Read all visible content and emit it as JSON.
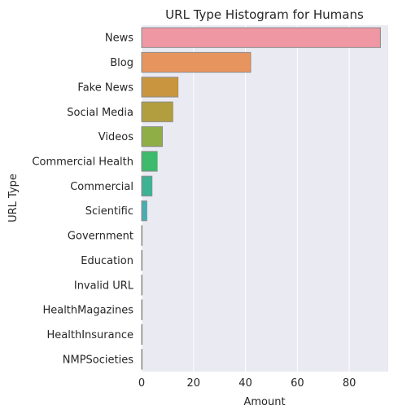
{
  "chart_data": {
    "type": "bar",
    "orientation": "horizontal",
    "title": "URL Type Histogram for Humans",
    "xlabel": "Amount",
    "ylabel": "URL Type",
    "xlim": [
      0,
      95
    ],
    "xticks": [
      0,
      20,
      40,
      60,
      80
    ],
    "grid": true,
    "categories": [
      "News",
      "Blog",
      "Fake News",
      "Social Media",
      "Videos",
      "Commercial Health",
      "Commercial",
      "Scientific",
      "Government",
      "Education",
      "Invalid URL",
      "HealthMagazines",
      "HealthInsurance",
      "NMPSocieties"
    ],
    "values": [
      92,
      42,
      14,
      12,
      8,
      6,
      4,
      2,
      0,
      0,
      0,
      0,
      0,
      0
    ],
    "colors": [
      "#ef97a3",
      "#e8945f",
      "#c9963f",
      "#b29e3f",
      "#8fae45",
      "#3dba6b",
      "#40b294",
      "#45aeb3",
      "#47abc5",
      "#55a7dc",
      "#8f9ee8",
      "#c292e9",
      "#e88be0",
      "#ee92c4"
    ]
  }
}
